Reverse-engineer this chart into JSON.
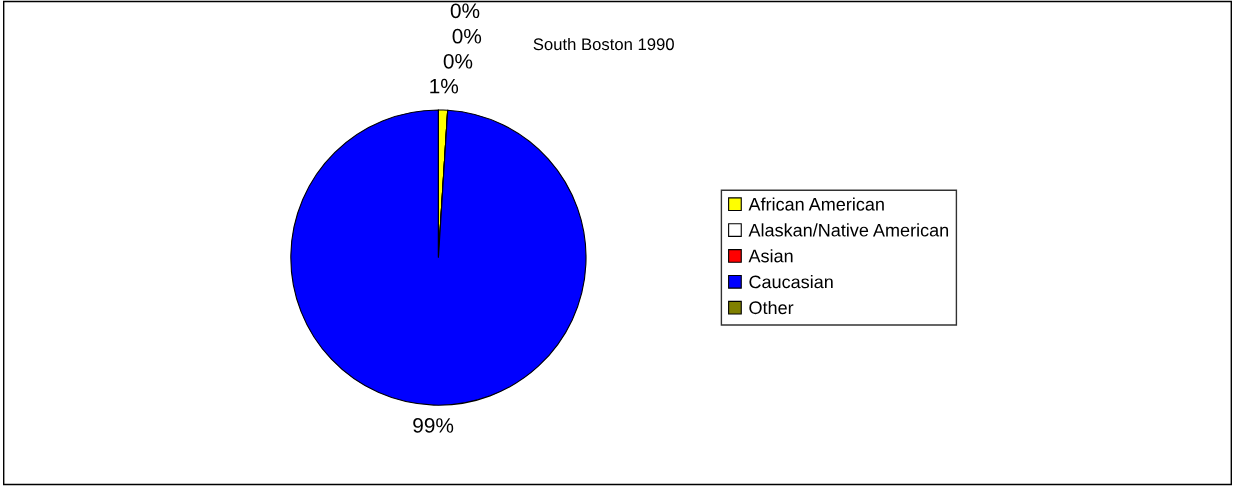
{
  "chart_data": {
    "type": "pie",
    "title": "South Boston 1990",
    "categories": [
      "African American",
      "Alaskan/Native American",
      "Asian",
      "Caucasian",
      "Other"
    ],
    "values": [
      1,
      0,
      0,
      99,
      0
    ],
    "colors": [
      "#ffff00",
      "#ffffff",
      "#ff0000",
      "#0000ff",
      "#808000"
    ],
    "data_labels": true,
    "value_labels": [
      "1%",
      "0%",
      "0%",
      "99%",
      "0%"
    ],
    "legend": "right"
  }
}
